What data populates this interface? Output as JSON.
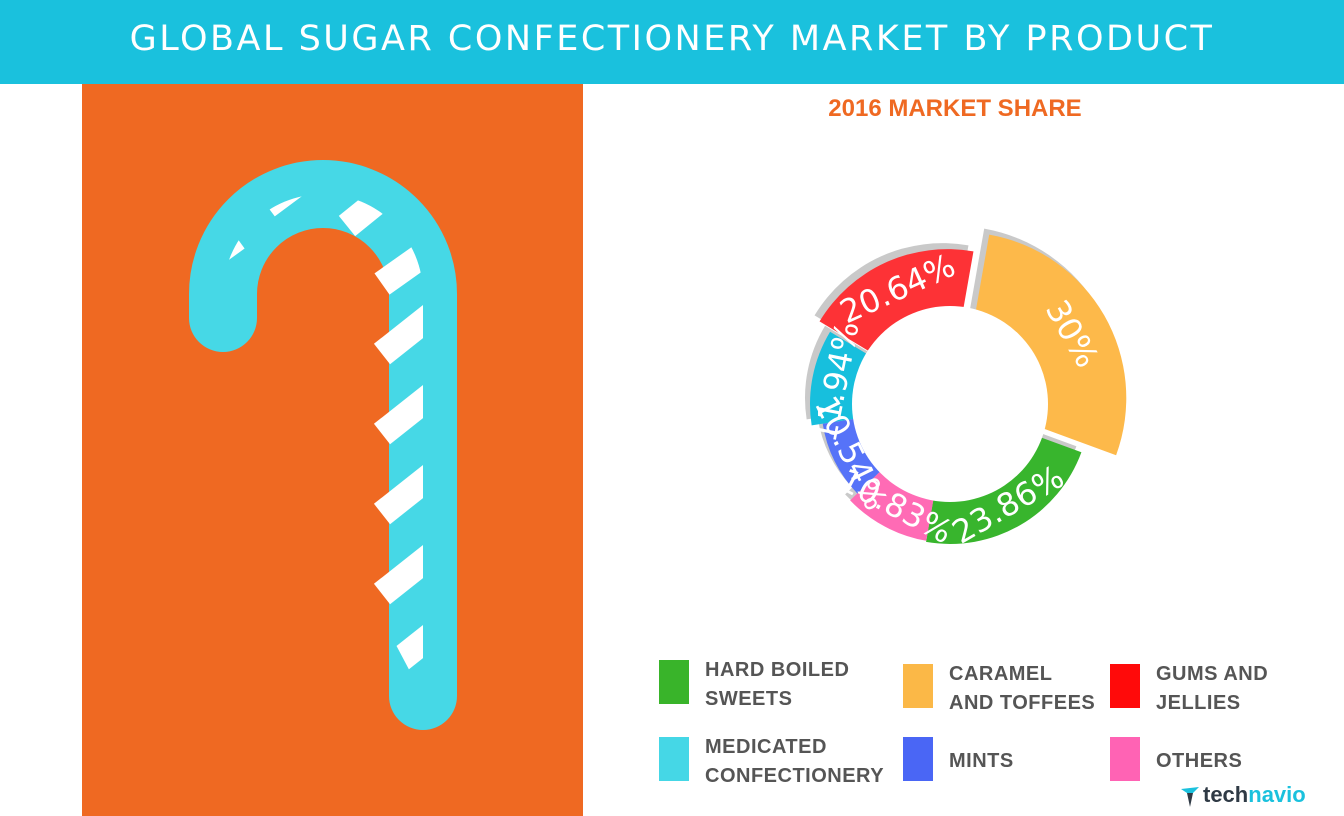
{
  "header": {
    "title": "GLOBAL SUGAR CONFECTIONERY MARKET BY PRODUCT"
  },
  "colors": {
    "header_bg": "#1ac1dd",
    "panel_bg": "#ef6922",
    "candy_stripe_color": "#46d8e6",
    "candy_stripe_alt": "#ffffff",
    "subtitle": "#ef6922",
    "legend_text": "#555555"
  },
  "illustration": {
    "icon": "candy-cane-icon"
  },
  "chart_data": {
    "type": "pie",
    "style": "exploded donut",
    "title": "",
    "subtitle": "2016 MARKET SHARE",
    "labels": [
      "CARAMEL AND TOFFEES",
      "HARD BOILED SWEETS",
      "OTHERS",
      "MINTS",
      "MEDICATED CONFECTIONERY",
      "GUMS AND JELLIES"
    ],
    "values": [
      30,
      23.86,
      10.83,
      10.54,
      11.94,
      20.64
    ],
    "data_labels": [
      "30%",
      "23.86%",
      "10.83%",
      "10.54%",
      "11.94%",
      "20.64%"
    ],
    "colors": [
      "#fdb94a",
      "#38b52d",
      "#ff6bb5",
      "#5673f8",
      "#17bfdd",
      "#fd3236"
    ],
    "legend_placement": "bottom"
  },
  "legend": {
    "items": [
      {
        "line1": "HARD BOILED",
        "line2": "SWEETS",
        "color": "#39b42a"
      },
      {
        "line1": "CARAMEL",
        "line2": "AND TOFFEES",
        "color": "#fbb847"
      },
      {
        "line1": "GUMS AND",
        "line2": "JELLIES",
        "color": "#ff0a0a"
      },
      {
        "line1": "MEDICATED",
        "line2": "CONFECTIONERY",
        "color": "#45d7e6"
      },
      {
        "line1": "MINTS",
        "line2": "",
        "color": "#4a66f5"
      },
      {
        "line1": "OTHERS",
        "line2": "",
        "color": "#ff63b4"
      }
    ]
  },
  "brand": {
    "name_part1": "tech",
    "name_part2": "navio",
    "icon": "technavio-logo-icon"
  }
}
